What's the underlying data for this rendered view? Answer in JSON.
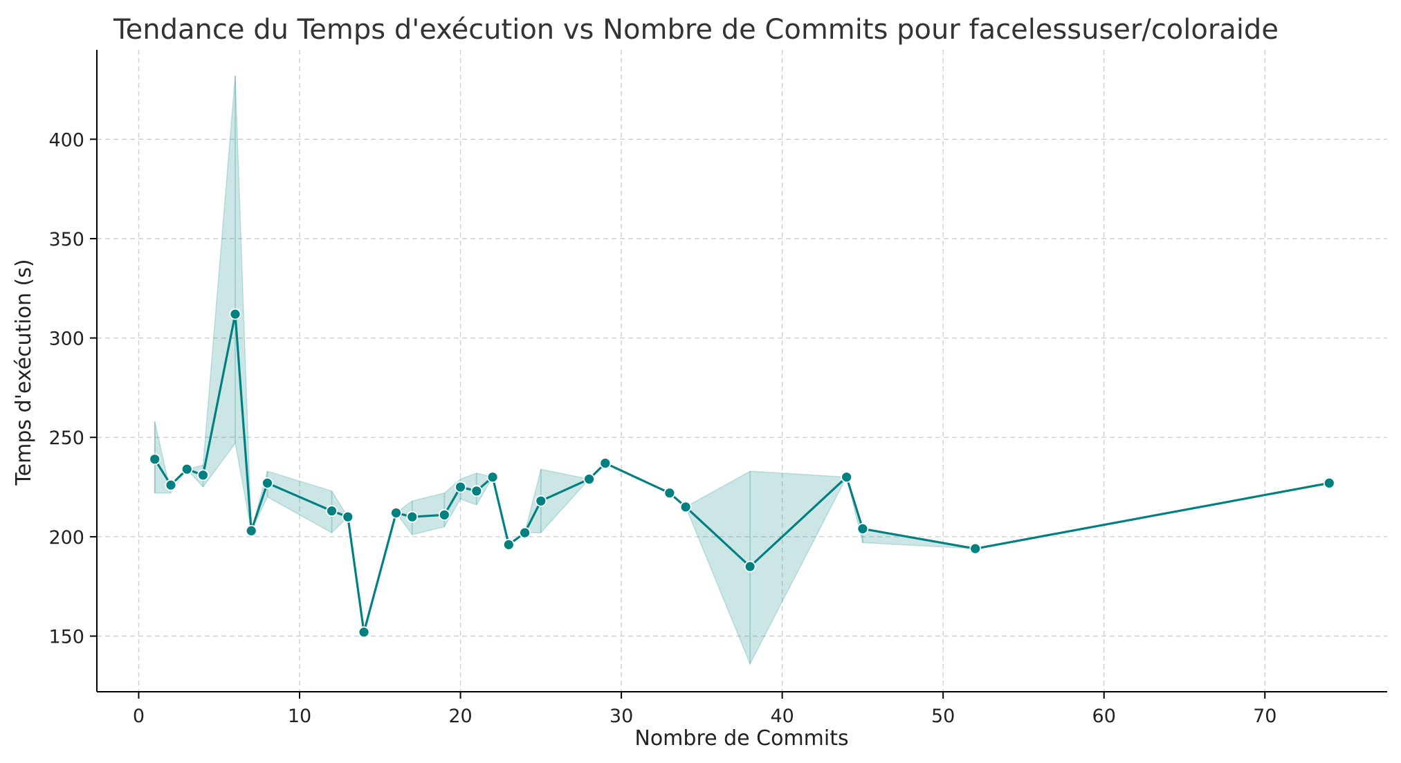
{
  "chart_data": {
    "type": "line",
    "title": "Tendance du Temps d'exécution vs Nombre de Commits pour facelessuser/coloraide",
    "xlabel": "Nombre de Commits",
    "ylabel": "Temps d'exécution (s)",
    "xlim": [
      -2.6,
      77.6
    ],
    "ylim": [
      122,
      445
    ],
    "xticks": [
      0,
      10,
      20,
      30,
      40,
      50,
      60,
      70
    ],
    "yticks": [
      150,
      200,
      250,
      300,
      350,
      400
    ],
    "grid": true,
    "legend": "none",
    "colors": {
      "line": "#008080",
      "band": "#008080",
      "marker_edge": "#ffffff"
    },
    "series": [
      {
        "x": [
          1,
          2,
          3,
          4,
          6,
          7,
          8,
          12,
          13,
          14,
          16,
          17,
          19,
          20,
          21,
          22,
          23,
          24,
          25,
          28,
          29,
          33,
          34,
          38,
          44,
          45,
          52,
          74
        ],
        "y": [
          239,
          226,
          234,
          231,
          312,
          203,
          227,
          213,
          210,
          152,
          212,
          210,
          211,
          225,
          223,
          230,
          196,
          202,
          218,
          229,
          237,
          222,
          215,
          185,
          230,
          204,
          194,
          227
        ],
        "ci_low": [
          222,
          222,
          234,
          225,
          247,
          203,
          220,
          202,
          210,
          152,
          212,
          201,
          205,
          219,
          216,
          230,
          196,
          202,
          202,
          229,
          237,
          222,
          215,
          136,
          230,
          197,
          194,
          227
        ],
        "ci_high": [
          258,
          222,
          234,
          236,
          432,
          203,
          233,
          223,
          210,
          152,
          212,
          218,
          222,
          229,
          232,
          230,
          196,
          202,
          234,
          229,
          237,
          222,
          215,
          233,
          230,
          204,
          194,
          227
        ]
      }
    ]
  }
}
